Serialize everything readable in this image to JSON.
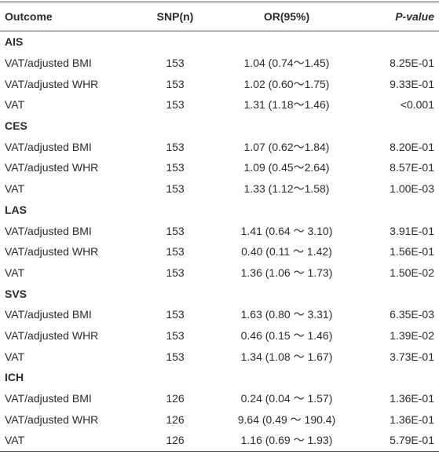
{
  "table": {
    "header": [
      "Outcome",
      "SNP(n)",
      "OR(95%)",
      "P-value"
    ],
    "groups": [
      {
        "name": "AIS",
        "rows": [
          [
            "VAT/adjusted BMI",
            "153",
            "1.04 (0.74～1.45)",
            "8.25E-01"
          ],
          [
            "VAT/adjusted WHR",
            "153",
            "1.02 (0.60～1.75)",
            "9.33E-01"
          ],
          [
            "VAT",
            "153",
            "1.31 (1.18～1.46)",
            "<0.001"
          ]
        ]
      },
      {
        "name": "CES",
        "rows": [
          [
            "VAT/adjusted BMI",
            "153",
            "1.07 (0.62～1.84)",
            "8.20E-01"
          ],
          [
            "VAT/adjusted WHR",
            "153",
            "1.09 (0.45～2.64)",
            "8.57E-01"
          ],
          [
            "VAT",
            "153",
            "1.33 (1.12～1.58)",
            "1.00E-03"
          ]
        ]
      },
      {
        "name": "LAS",
        "rows": [
          [
            "VAT/adjusted BMI",
            "153",
            "1.41 (0.64 ～ 3.10)",
            "3.91E-01"
          ],
          [
            "VAT/adjusted WHR",
            "153",
            "0.40 (0.11 ～ 1.42)",
            "1.56E-01"
          ],
          [
            "VAT",
            "153",
            "1.36 (1.06 ～ 1.73)",
            "1.50E-02"
          ]
        ]
      },
      {
        "name": "SVS",
        "rows": [
          [
            "VAT/adjusted BMI",
            "153",
            "1.63 (0.80 ～ 3.31)",
            "6.35E-03"
          ],
          [
            "VAT/adjusted WHR",
            "153",
            "0.46 (0.15 ～ 1.46)",
            "1.39E-02"
          ],
          [
            "VAT",
            "153",
            "1.34 (1.08 ～ 1.67)",
            "3.73E-01"
          ]
        ]
      },
      {
        "name": "ICH",
        "rows": [
          [
            "VAT/adjusted BMI",
            "126",
            "0.24 (0.04 ～ 1.57)",
            "1.36E-01"
          ],
          [
            "VAT/adjusted WHR",
            "126",
            "9.64 (0.49 ～ 190.4)",
            "1.36E-01"
          ],
          [
            "VAT",
            "126",
            "1.16 (0.69 ～ 1.93)",
            "5.79E-01"
          ]
        ]
      }
    ]
  }
}
